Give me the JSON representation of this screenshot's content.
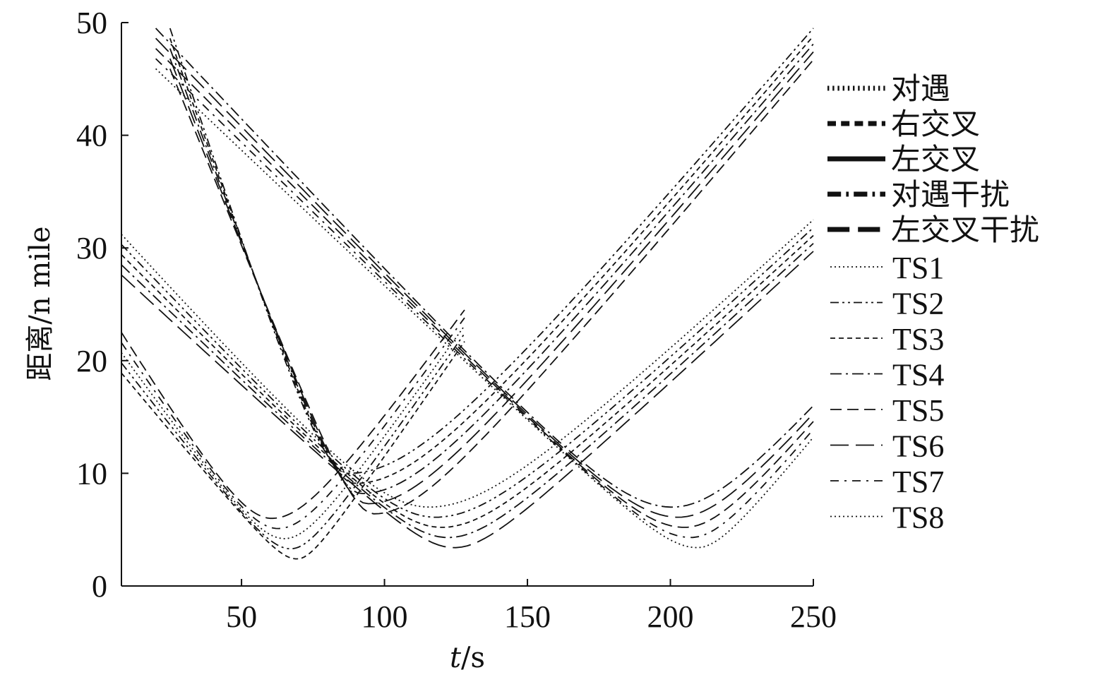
{
  "chart_data": {
    "type": "line",
    "title": "",
    "xlabel_italic": "t",
    "xlabel_unit": "/s",
    "ylabel": "距离/n mile",
    "xlim": [
      8,
      250
    ],
    "ylim": [
      0,
      50
    ],
    "x_ticks": [
      50,
      100,
      150,
      200,
      250
    ],
    "y_ticks": [
      0,
      10,
      20,
      30,
      40,
      50
    ],
    "grid": false,
    "legend_position": "right",
    "legend_scenarios": [
      {
        "label": "对遇",
        "style": "dotted"
      },
      {
        "label": "右交叉",
        "style": "dashed"
      },
      {
        "label": "左交叉",
        "style": "solid"
      },
      {
        "label": "对遇干扰",
        "style": "dashdot"
      },
      {
        "label": "左交叉干扰",
        "style": "longdash"
      }
    ],
    "legend_ships": [
      {
        "label": "TS1",
        "style": "dotted"
      },
      {
        "label": "TS2",
        "style": "dashdotdot"
      },
      {
        "label": "TS3",
        "style": "shortdash"
      },
      {
        "label": "TS4",
        "style": "dashdot"
      },
      {
        "label": "TS5",
        "style": "dash"
      },
      {
        "label": "TS6",
        "style": "longdash"
      },
      {
        "label": "TS7",
        "style": "dashdot2"
      },
      {
        "label": "TS8",
        "style": "dotted"
      }
    ],
    "curve_families": [
      {
        "start": [
          8,
          31.2
        ],
        "min_point": [
          120,
          7.0
        ],
        "end": [
          250,
          32.5
        ],
        "count": 5
      },
      {
        "start": [
          8,
          22.5
        ],
        "min_point": [
          65,
          6.0
        ],
        "end": [
          128,
          24.5
        ],
        "count": 5
      },
      {
        "start": [
          20,
          49.5
        ],
        "min_point": [
          205,
          7.0
        ],
        "end": [
          250,
          16.0
        ],
        "count": 5
      },
      {
        "start": [
          25,
          49.5
        ],
        "min_point": [
          92,
          10.0
        ],
        "end": [
          250,
          49.5
        ],
        "count": 5
      }
    ]
  }
}
